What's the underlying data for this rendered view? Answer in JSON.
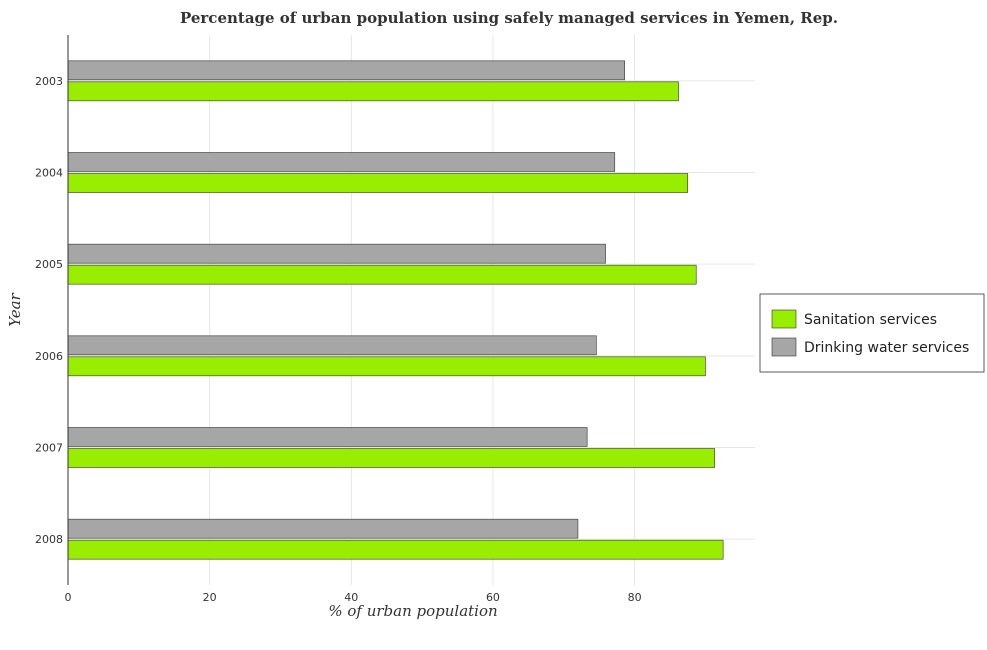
{
  "chart_data": {
    "type": "bar",
    "orientation": "horizontal",
    "title": "Percentage of urban population using safely managed services in Yemen, Rep.",
    "xlabel": "% of urban population",
    "ylabel": "Year",
    "categories": [
      "2003",
      "2004",
      "2005",
      "2006",
      "2007",
      "2008"
    ],
    "xlim": [
      0,
      97
    ],
    "xticks": [
      "0",
      "20",
      "40",
      "60",
      "80"
    ],
    "grid": true,
    "legend_position": "right",
    "series": [
      {
        "name": "Sanitation services",
        "color": "#99ee00",
        "values": [
          86.2,
          87.5,
          88.7,
          90.0,
          91.3,
          92.5
        ]
      },
      {
        "name": "Drinking water services",
        "color": "#a6a6a6",
        "values": [
          78.6,
          77.2,
          75.9,
          74.6,
          73.3,
          72.0
        ]
      }
    ]
  }
}
